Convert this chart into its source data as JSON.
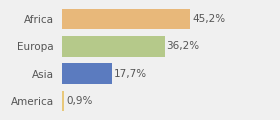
{
  "categories": [
    "America",
    "Asia",
    "Europa",
    "Africa"
  ],
  "values": [
    0.9,
    17.7,
    36.2,
    45.2
  ],
  "labels": [
    "0,9%",
    "17,7%",
    "36,2%",
    "45,2%"
  ],
  "bar_colors": [
    "#e8c87a",
    "#5b7bbf",
    "#b5c98a",
    "#e8b87a"
  ],
  "background_color": "#f0f0f0",
  "xlim": [
    0,
    55
  ],
  "label_fontsize": 7.5,
  "tick_fontsize": 7.5,
  "bar_height": 0.75
}
